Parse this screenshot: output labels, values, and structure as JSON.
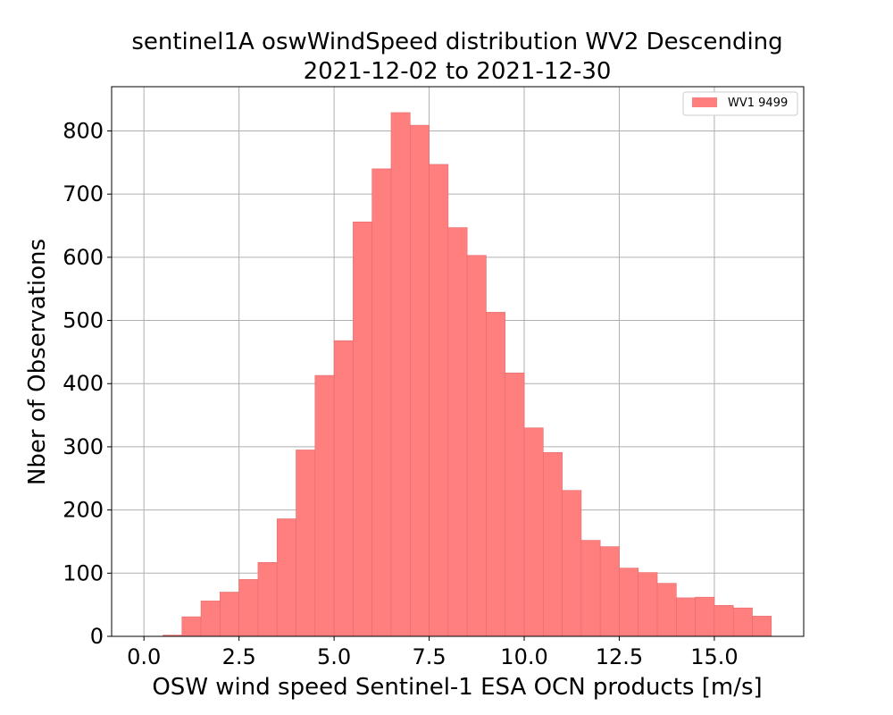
{
  "chart_data": {
    "type": "bar",
    "title_line1": "sentinel1A oswWindSpeed distribution WV2 Descending",
    "title_line2": "2021-12-02 to 2021-12-30",
    "xlabel": "OSW wind speed Sentinel-1 ESA OCN products [m/s]",
    "ylabel": "Nber of Observations",
    "xlim": [
      -0.85,
      17.35
    ],
    "ylim": [
      0,
      870
    ],
    "bin_width": 0.5,
    "bin_edges_start": 0.0,
    "x_ticks": [
      0.0,
      2.5,
      5.0,
      7.5,
      10.0,
      12.5,
      15.0
    ],
    "x_tick_labels": [
      "0.0",
      "2.5",
      "5.0",
      "7.5",
      "10.0",
      "12.5",
      "15.0"
    ],
    "y_ticks": [
      0,
      100,
      200,
      300,
      400,
      500,
      600,
      700,
      800
    ],
    "y_tick_labels": [
      "0",
      "100",
      "200",
      "300",
      "400",
      "500",
      "600",
      "700",
      "800"
    ],
    "grid": true,
    "bar_color": "#ff7f7f",
    "series": [
      {
        "name": "WV1 9499",
        "values": [
          0,
          2,
          31,
          56,
          70,
          90,
          117,
          186,
          295,
          413,
          468,
          656,
          740,
          829,
          809,
          747,
          647,
          603,
          513,
          417,
          330,
          291,
          231,
          152,
          142,
          108,
          101,
          84,
          61,
          62,
          49,
          45,
          32
        ]
      }
    ],
    "legend": {
      "position": "top-right",
      "label": "WV1 9499"
    }
  }
}
